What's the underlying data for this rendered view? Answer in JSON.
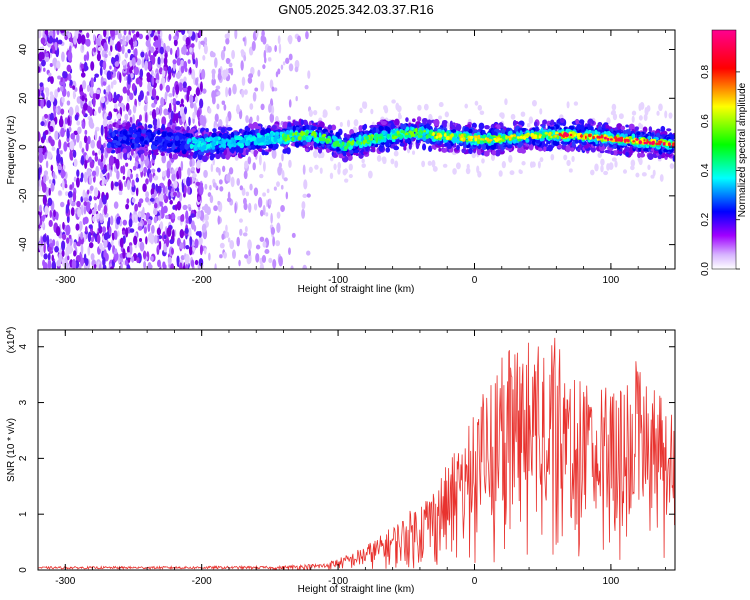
{
  "title": "GN05.2025.342.03.37.R16",
  "chart_data": [
    {
      "type": "heatmap",
      "xlabel": "Height of straight line (km)",
      "ylabel": "Frequency (Hz)",
      "xlim": [
        -320,
        147
      ],
      "ylim": [
        -50,
        48
      ],
      "x_ticks": [
        -300,
        -200,
        -100,
        0,
        100
      ],
      "x_tick_labels": [
        "-300",
        "-200",
        "-100",
        "0",
        "100"
      ],
      "y_ticks": [
        -40,
        -20,
        0,
        20,
        40
      ],
      "y_tick_labels": [
        "-40",
        "-20",
        "0",
        "20",
        "40"
      ],
      "colorbar": {
        "label": "Normalized spectral amplitude",
        "range": [
          0,
          0.97
        ],
        "ticks": [
          0.0,
          0.2,
          0.4,
          0.6,
          0.8
        ],
        "tick_labels": [
          "0.0",
          "0.2",
          "0.4",
          "0.6",
          "0.8"
        ],
        "colormap": [
          "#ffffff",
          "#a000ff",
          "#0000ff",
          "#00ffff",
          "#00ff00",
          "#ffff00",
          "#ff0000",
          "#ff0080"
        ]
      },
      "ridge": {
        "x": [
          -265,
          -240,
          -220,
          -200,
          -180,
          -160,
          -140,
          -120,
          -105,
          -95,
          -85,
          -70,
          -55,
          -45,
          -30,
          -10,
          10,
          30,
          50,
          70,
          90,
          110,
          130,
          147
        ],
        "frequency_hz": [
          4,
          3,
          2,
          1,
          2,
          3,
          4,
          5,
          3,
          0,
          2,
          4,
          5,
          6,
          5,
          4,
          3,
          4,
          5,
          5,
          4,
          3,
          2,
          1
        ]
      }
    },
    {
      "type": "line",
      "xlabel": "Height of straight line (km)",
      "ylabel": "SNR (10 * v/v)",
      "y_multiplier": "(x10",
      "y_multiplier_exp": "4",
      "y_multiplier_close": ")",
      "xlim": [
        -320,
        147
      ],
      "ylim": [
        0,
        4.3
      ],
      "x_ticks": [
        -300,
        -200,
        -100,
        0,
        100
      ],
      "x_tick_labels": [
        "-300",
        "-200",
        "-100",
        "0",
        "100"
      ],
      "y_ticks": [
        0,
        1,
        2,
        3,
        4
      ],
      "y_tick_labels": [
        "0",
        "1",
        "2",
        "3",
        "4"
      ],
      "series": [
        {
          "color": "#e8322e",
          "envelope_x": [
            -320,
            -150,
            -110,
            -90,
            -70,
            -50,
            -30,
            -20,
            -10,
            0,
            10,
            20,
            30,
            40,
            50,
            60,
            70,
            80,
            90,
            100,
            110,
            120,
            130,
            147
          ],
          "envelope_y": [
            0.05,
            0.06,
            0.12,
            0.3,
            0.6,
            1.0,
            1.5,
            1.9,
            2.3,
            2.8,
            3.4,
            3.8,
            4.1,
            4.2,
            4.0,
            4.2,
            3.6,
            3.5,
            3.3,
            3.6,
            3.2,
            3.9,
            3.3,
            2.8
          ]
        }
      ]
    }
  ]
}
